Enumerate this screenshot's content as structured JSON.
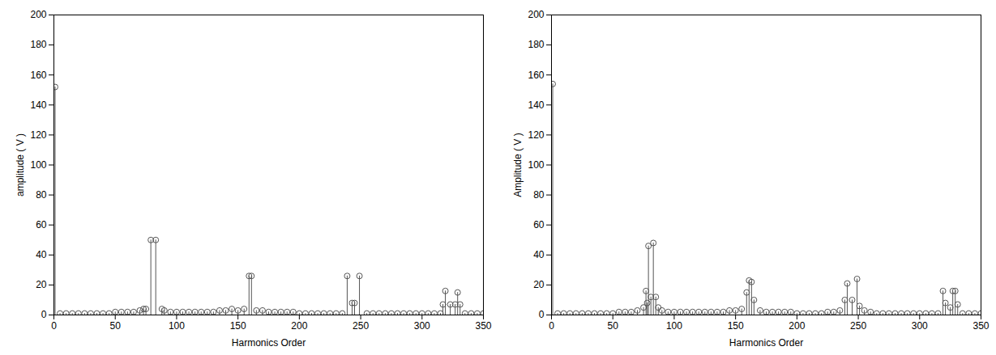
{
  "chart_data": [
    {
      "type": "stem",
      "xlabel": "Harmonics Order",
      "ylabel": "amplitude ( V )",
      "x": [
        1,
        5,
        10,
        15,
        20,
        25,
        30,
        35,
        40,
        45,
        50,
        55,
        60,
        65,
        70,
        73,
        75,
        79,
        83,
        88,
        90,
        95,
        100,
        105,
        110,
        115,
        120,
        125,
        130,
        135,
        140,
        145,
        150,
        155,
        159,
        161,
        165,
        170,
        175,
        180,
        185,
        190,
        195,
        200,
        205,
        210,
        215,
        220,
        225,
        230,
        235,
        239,
        243,
        245,
        249,
        255,
        260,
        265,
        270,
        275,
        280,
        285,
        290,
        295,
        300,
        305,
        310,
        315,
        317,
        319,
        323,
        327,
        329,
        331,
        335,
        340,
        345,
        350
      ],
      "values": [
        152,
        1,
        1,
        1,
        1,
        1,
        1,
        1,
        1,
        1,
        2,
        2,
        2,
        2,
        3,
        4,
        4,
        50,
        50,
        4,
        3,
        2,
        2,
        2,
        2,
        2,
        2,
        2,
        2,
        3,
        3,
        4,
        3,
        4,
        26,
        26,
        3,
        3,
        2,
        2,
        2,
        2,
        2,
        1,
        1,
        1,
        1,
        1,
        1,
        1,
        1,
        26,
        8,
        8,
        26,
        1,
        1,
        1,
        1,
        1,
        1,
        1,
        1,
        1,
        1,
        1,
        1,
        1,
        7,
        16,
        7,
        7,
        15,
        7,
        1,
        1,
        1,
        1
      ],
      "xlim": [
        0,
        350
      ],
      "ylim": [
        0,
        200
      ],
      "xticks": [
        0,
        50,
        100,
        150,
        200,
        250,
        300,
        350
      ],
      "yticks": [
        0,
        20,
        40,
        60,
        80,
        100,
        120,
        140,
        160,
        180,
        200
      ],
      "color": "#555555",
      "marker": "o"
    },
    {
      "type": "stem",
      "xlabel": "Harmonics Order",
      "ylabel": "Amplitude ( V )",
      "x": [
        1,
        5,
        10,
        15,
        20,
        25,
        30,
        35,
        40,
        45,
        50,
        55,
        60,
        65,
        70,
        75,
        77,
        78,
        79,
        81,
        83,
        85,
        87,
        90,
        95,
        100,
        105,
        110,
        115,
        120,
        125,
        130,
        135,
        140,
        145,
        150,
        155,
        159,
        161,
        163,
        165,
        170,
        175,
        180,
        185,
        190,
        195,
        200,
        205,
        210,
        215,
        220,
        225,
        230,
        235,
        239,
        241,
        245,
        249,
        251,
        255,
        260,
        265,
        270,
        275,
        280,
        285,
        290,
        295,
        300,
        305,
        310,
        315,
        319,
        321,
        325,
        327,
        329,
        331,
        335,
        340,
        345,
        350
      ],
      "values": [
        154,
        1,
        1,
        1,
        1,
        1,
        1,
        1,
        1,
        1,
        1,
        2,
        2,
        2,
        3,
        5,
        16,
        8,
        46,
        12,
        48,
        12,
        5,
        3,
        2,
        2,
        2,
        2,
        2,
        2,
        2,
        2,
        2,
        2,
        3,
        3,
        4,
        15,
        23,
        22,
        10,
        3,
        2,
        2,
        2,
        2,
        2,
        1,
        1,
        1,
        1,
        1,
        2,
        2,
        3,
        10,
        21,
        10,
        24,
        6,
        3,
        2,
        1,
        1,
        1,
        1,
        1,
        1,
        1,
        1,
        1,
        1,
        1,
        16,
        8,
        5,
        16,
        16,
        7,
        1,
        1,
        1,
        1
      ],
      "xlim": [
        0,
        350
      ],
      "ylim": [
        0,
        200
      ],
      "xticks": [
        0,
        50,
        100,
        150,
        200,
        250,
        300,
        350
      ],
      "yticks": [
        0,
        20,
        40,
        60,
        80,
        100,
        120,
        140,
        160,
        180,
        200
      ],
      "color": "#555555",
      "marker": "o"
    }
  ]
}
